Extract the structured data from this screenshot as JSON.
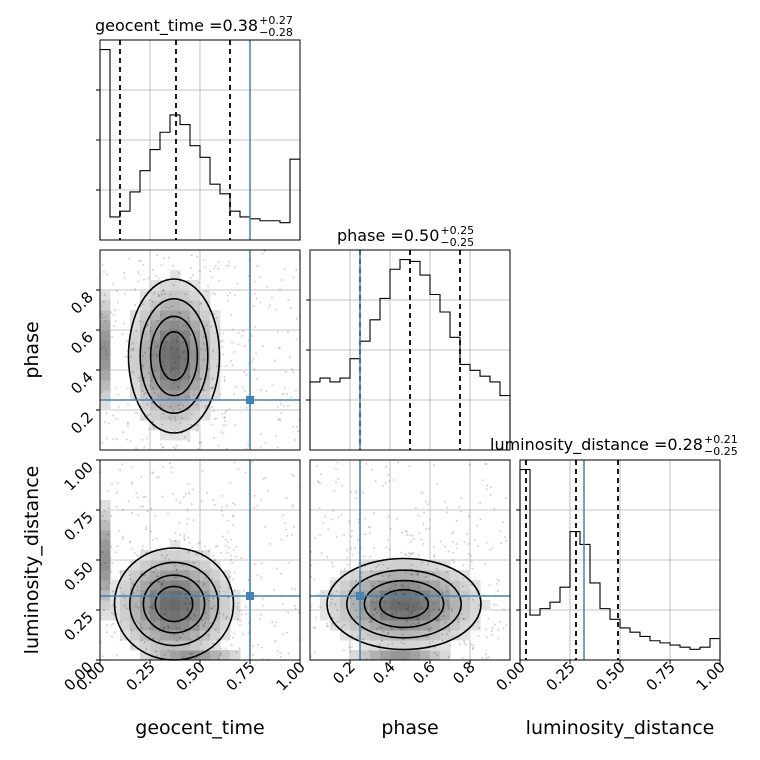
{
  "chart_data": {
    "type": "corner",
    "parameters": [
      "geocent_time",
      "phase",
      "luminosity_distance"
    ],
    "injection": {
      "geocent_time": 0.75,
      "phase": 0.25,
      "luminosity_distance": 0.32
    },
    "accent_color": "#4682b4",
    "grid": true,
    "titles": [
      {
        "prefix": "geocent_time = ",
        "value": "0.38",
        "plus": "+0.27",
        "minus": "−0.28"
      },
      {
        "prefix": "phase = ",
        "value": "0.50",
        "plus": "+0.25",
        "minus": "−0.25"
      },
      {
        "prefix": "luminosity_distance = ",
        "value": "0.28",
        "plus": "+0.21",
        "minus": "−0.25"
      }
    ],
    "marginals": [
      {
        "param": "geocent_time",
        "xlim": [
          0,
          1
        ],
        "bin_edges": [
          0.0,
          0.05,
          0.1,
          0.15,
          0.2,
          0.25,
          0.3,
          0.35,
          0.4,
          0.45,
          0.5,
          0.55,
          0.6,
          0.65,
          0.7,
          0.75,
          0.8,
          0.85,
          0.9,
          0.95,
          1.0
        ],
        "counts": [
          0.99,
          0.12,
          0.15,
          0.25,
          0.36,
          0.47,
          0.56,
          0.65,
          0.6,
          0.49,
          0.43,
          0.29,
          0.24,
          0.15,
          0.12,
          0.11,
          0.1,
          0.1,
          0.09,
          0.42
        ],
        "quantiles": [
          0.1,
          0.38,
          0.65
        ]
      },
      {
        "param": "phase",
        "xlim": [
          0,
          1
        ],
        "bin_edges": [
          0.0,
          0.05,
          0.1,
          0.15,
          0.2,
          0.25,
          0.3,
          0.35,
          0.4,
          0.45,
          0.5,
          0.55,
          0.6,
          0.65,
          0.7,
          0.75,
          0.8,
          0.85,
          0.9,
          0.95,
          1.0
        ],
        "counts": [
          0.35,
          0.37,
          0.35,
          0.37,
          0.47,
          0.56,
          0.67,
          0.78,
          0.93,
          0.98,
          0.97,
          0.9,
          0.8,
          0.71,
          0.58,
          0.44,
          0.41,
          0.38,
          0.35,
          0.28
        ],
        "quantiles": [
          0.25,
          0.5,
          0.75
        ]
      },
      {
        "param": "luminosity_distance",
        "xlim": [
          0,
          1
        ],
        "bin_edges": [
          0.0,
          0.05,
          0.1,
          0.15,
          0.2,
          0.25,
          0.3,
          0.35,
          0.4,
          0.45,
          0.5,
          0.55,
          0.6,
          0.65,
          0.7,
          0.75,
          0.8,
          0.85,
          0.9,
          0.95,
          1.0
        ],
        "counts": [
          0.89,
          0.21,
          0.24,
          0.27,
          0.34,
          0.6,
          0.54,
          0.36,
          0.24,
          0.19,
          0.15,
          0.13,
          0.11,
          0.09,
          0.08,
          0.07,
          0.06,
          0.05,
          0.06,
          0.1
        ],
        "quantiles": [
          0.03,
          0.28,
          0.49
        ]
      }
    ],
    "axis_labels": {
      "x": [
        "geocent_time",
        "phase",
        "luminosity_distance"
      ],
      "y": [
        "phase",
        "luminosity_distance"
      ]
    },
    "ticks": {
      "geocent_time": [
        "0.00",
        "0.25",
        "0.50",
        "0.75",
        "1.00"
      ],
      "phase": [
        "0.2",
        "0.4",
        "0.6",
        "0.8"
      ],
      "luminosity_distance": [
        "0.00",
        "0.25",
        "0.50",
        "0.75",
        "1.00"
      ]
    },
    "tick_values": {
      "geocent_time": [
        0,
        0.25,
        0.5,
        0.75,
        1.0
      ],
      "phase": [
        0.2,
        0.4,
        0.6,
        0.8
      ],
      "luminosity_distance": [
        0,
        0.25,
        0.5,
        0.75,
        1.0
      ]
    }
  }
}
